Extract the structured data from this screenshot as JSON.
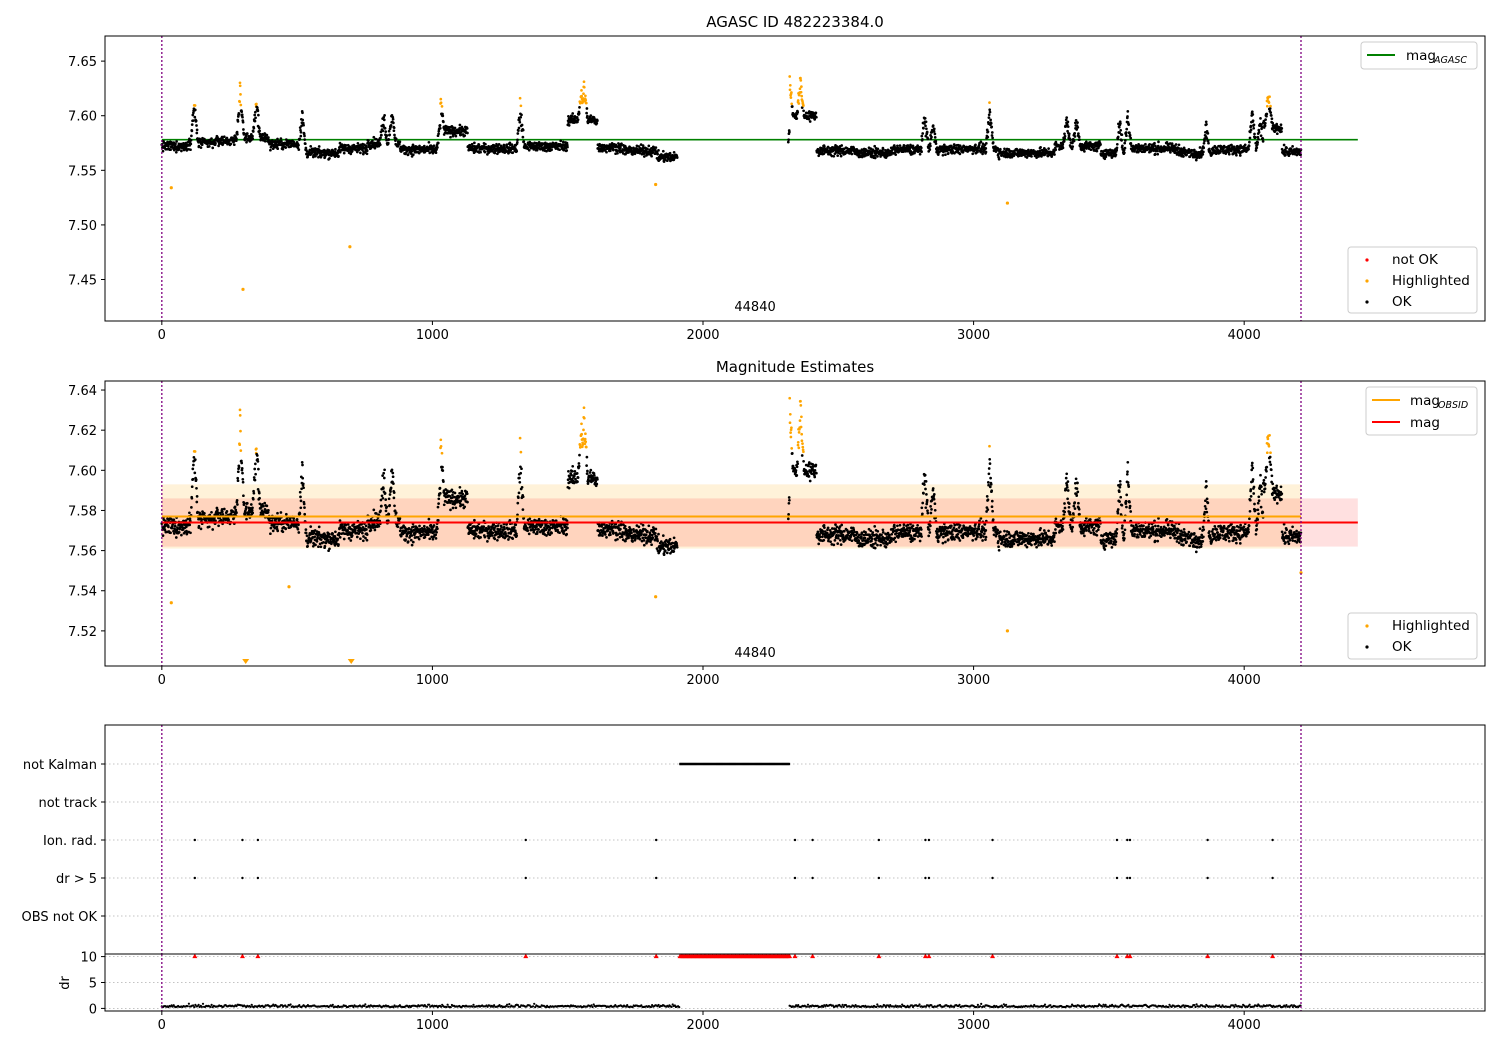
{
  "chart_data": [
    {
      "type": "scatter",
      "title": "AGASC ID 482223384.0",
      "xlabel": "",
      "ylabel": "",
      "xlim": [
        -210,
        4890
      ],
      "ylim": [
        7.412,
        7.673
      ],
      "x_ticks": [
        0,
        1000,
        2000,
        3000,
        4000
      ],
      "y_ticks": [
        7.45,
        7.5,
        7.55,
        7.6,
        7.65
      ],
      "grid": false,
      "obsid_label": {
        "text": "44840",
        "x": 2100
      },
      "vlines": {
        "x": [
          0,
          4210
        ],
        "color": "#800080",
        "style": "dotted"
      },
      "hlines": [
        {
          "name": "mag_AGASC",
          "label_main": "mag",
          "label_sub": "AGASC",
          "y": 7.578,
          "x_range": [
            0,
            4420
          ],
          "color": "#008000"
        }
      ],
      "legend_upper": {
        "placement": "top-right",
        "items": [
          {
            "label": "mag",
            "sub": "AGASC",
            "color": "#008000",
            "kind": "line"
          }
        ]
      },
      "legend_lower": {
        "placement": "bottom-right",
        "items": [
          {
            "label": "not OK",
            "color": "#ff0000",
            "kind": "dot"
          },
          {
            "label": "Highlighted",
            "color": "#ffa500",
            "kind": "dot"
          },
          {
            "label": "OK",
            "color": "#000000",
            "kind": "dot"
          }
        ]
      },
      "outliers": [
        [
          35,
          7.534
        ],
        [
          300,
          7.441
        ],
        [
          695,
          7.48
        ],
        [
          1825,
          7.537
        ],
        [
          3125,
          7.52
        ]
      ]
    },
    {
      "type": "scatter",
      "title": "Magnitude Estimates",
      "xlabel": "",
      "ylabel": "",
      "xlim": [
        -210,
        4890
      ],
      "ylim": [
        7.5025,
        7.6445
      ],
      "x_ticks": [
        0,
        1000,
        2000,
        3000,
        4000
      ],
      "y_ticks": [
        7.52,
        7.54,
        7.56,
        7.58,
        7.6,
        7.62,
        7.64
      ],
      "grid": false,
      "obsid_label": {
        "text": "44840",
        "x": 2100
      },
      "vlines": {
        "x": [
          0,
          4210
        ],
        "color": "#800080",
        "style": "dotted"
      },
      "hlines": [
        {
          "name": "mag_OBSID",
          "label_main": "mag",
          "label_sub": "OBSID",
          "y": 7.577,
          "x_range": [
            0,
            4210
          ],
          "color": "#ffa500",
          "band": [
            7.561,
            7.593
          ]
        },
        {
          "name": "mag",
          "label_main": "mag",
          "label_sub": "",
          "y": 7.574,
          "x_range": [
            0,
            4420
          ],
          "color": "#ff0000",
          "band": [
            7.562,
            7.586
          ]
        }
      ],
      "legend_upper": {
        "placement": "top-right",
        "items": [
          {
            "label": "mag",
            "sub": "OBSID",
            "color": "#ffa500",
            "kind": "line"
          },
          {
            "label": "mag",
            "sub": "",
            "color": "#ff0000",
            "kind": "line"
          }
        ]
      },
      "legend_lower": {
        "placement": "bottom-right",
        "items": [
          {
            "label": "Highlighted",
            "color": "#ffa500",
            "kind": "dot"
          },
          {
            "label": "OK",
            "color": "#000000",
            "kind": "dot"
          }
        ]
      },
      "outliers": [
        [
          35,
          7.534
        ],
        [
          470,
          7.542
        ],
        [
          1825,
          7.537
        ],
        [
          3125,
          7.52
        ],
        [
          4210,
          7.549
        ]
      ],
      "below_range_markers": [
        310,
        700
      ]
    },
    {
      "type": "scatter",
      "title": "",
      "xlim": [
        -210,
        4890
      ],
      "categories": [
        "not Kalman",
        "not track",
        "Ion. rad.",
        "dr > 5",
        "OBS not OK"
      ],
      "not_kalman_range": [
        1915,
        2320
      ],
      "flag_times": [
        122,
        298,
        355,
        1345,
        1827,
        2340,
        2405,
        2650,
        2822,
        2835,
        3070,
        3530,
        3568,
        3578,
        3865,
        4105
      ]
    },
    {
      "type": "scatter",
      "title": "",
      "xlabel": "",
      "ylabel": "dr",
      "xlim": [
        -210,
        4890
      ],
      "ylim": [
        -0.5,
        10.5
      ],
      "x_ticks": [
        0,
        1000,
        2000,
        3000,
        4000
      ],
      "y_ticks": [
        0,
        5,
        10
      ],
      "clip_value": 10,
      "gap": [
        1915,
        2320
      ]
    }
  ],
  "colors": {
    "ok": "#000000",
    "highlighted": "#ffa500",
    "not_ok": "#ff0000",
    "vline": "#800080",
    "agasc_line": "#008000",
    "obsid_line": "#ffa500",
    "mag_line": "#ff0000"
  }
}
